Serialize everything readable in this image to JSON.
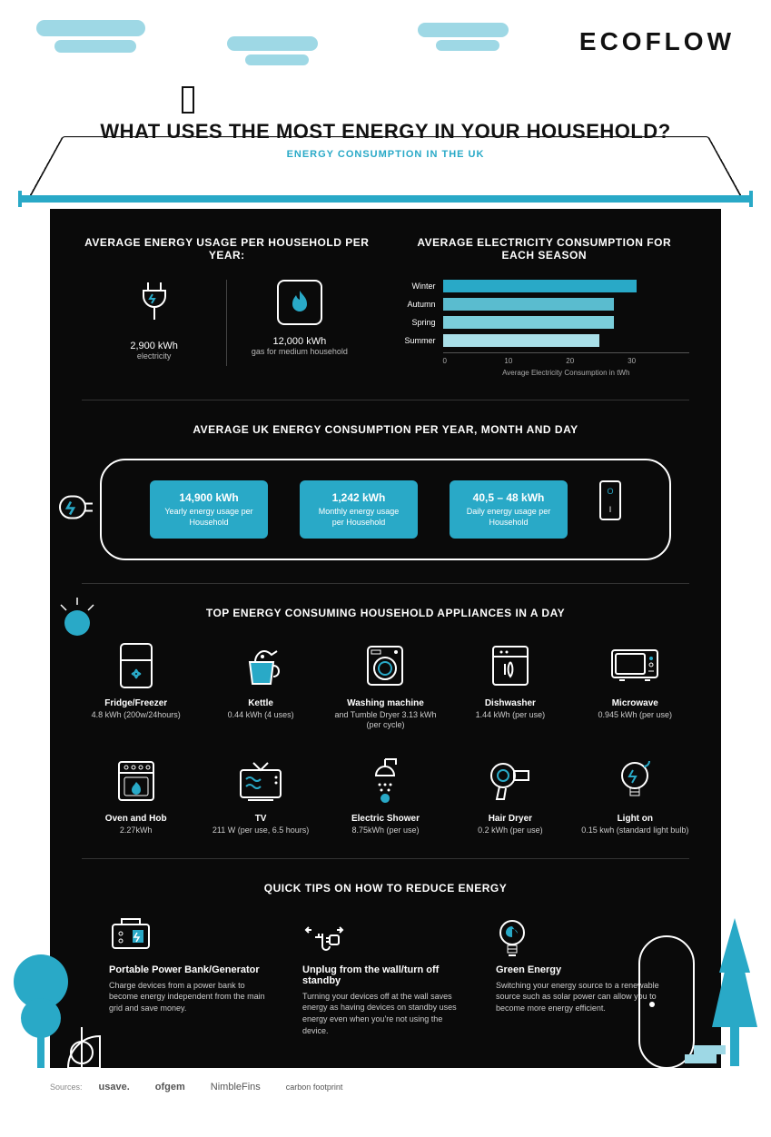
{
  "brand": "ECOFLOW",
  "title": "WHAT USES THE MOST ENERGY IN YOUR HOUSEHOLD?",
  "subtitle": "ENERGY CONSUMPTION IN THE UK",
  "colors": {
    "accent": "#29a9c7",
    "accent_light": "#9ed8e5",
    "dark_bg": "#0a0a0a",
    "divider": "#333333",
    "text_light": "#ffffff",
    "text_muted": "#cccccc"
  },
  "section1": {
    "left_title": "AVERAGE ENERGY USAGE PER HOUSEHOLD PER YEAR:",
    "stats": [
      {
        "value": "2,900 kWh",
        "label": "electricity",
        "icon": "plug"
      },
      {
        "value": "12,000 kWh",
        "label": "gas for medium household",
        "icon": "flame"
      }
    ],
    "right_title": "AVERAGE ELECTRICITY CONSUMPTION FOR EACH SEASON",
    "chart": {
      "type": "bar",
      "orientation": "horizontal",
      "x_axis_label": "Average Electricity Consumption in tWh",
      "xlim": [
        0,
        30
      ],
      "xticks": [
        0,
        10,
        20,
        30
      ],
      "bars": [
        {
          "label": "Winter",
          "value": 26,
          "color": "#29a9c7"
        },
        {
          "label": "Autumn",
          "value": 23,
          "color": "#5abccf"
        },
        {
          "label": "Spring",
          "value": 23,
          "color": "#7bcedb"
        },
        {
          "label": "Summer",
          "value": 21,
          "color": "#a9dfe8"
        }
      ]
    }
  },
  "section2": {
    "title": "AVERAGE UK ENERGY CONSUMPTION PER YEAR, MONTH AND DAY",
    "cards": [
      {
        "value": "14,900 kWh",
        "label": "Yearly energy usage per Household"
      },
      {
        "value": "1,242 kWh",
        "label": "Monthly energy usage per Household"
      },
      {
        "value": "40,5 – 48 kWh",
        "label": "Daily energy usage per Household"
      }
    ],
    "switch": {
      "top": "O",
      "bottom": "I"
    }
  },
  "section3": {
    "title": "TOP ENERGY CONSUMING HOUSEHOLD APPLIANCES IN A DAY",
    "items": [
      {
        "name": "Fridge/Freezer",
        "detail": "4.8 kWh (200w/24hours)",
        "icon": "fridge"
      },
      {
        "name": "Kettle",
        "detail": "0.44 kWh (4 uses)",
        "icon": "kettle"
      },
      {
        "name": "Washing machine",
        "detail": "and Tumble Dryer 3.13 kWh (per cycle)",
        "icon": "washer"
      },
      {
        "name": "Dishwasher",
        "detail": "1.44 kWh (per use)",
        "icon": "dishwasher"
      },
      {
        "name": "Microwave",
        "detail": "0.945 kWh (per use)",
        "icon": "microwave"
      },
      {
        "name": "Oven and Hob",
        "detail": "2.27kWh",
        "icon": "oven"
      },
      {
        "name": "TV",
        "detail": "211 W (per use, 6.5 hours)",
        "icon": "tv"
      },
      {
        "name": "Electric Shower",
        "detail": "8.75kWh (per use)",
        "icon": "shower"
      },
      {
        "name": "Hair Dryer",
        "detail": "0.2 kWh (per use)",
        "icon": "hairdryer"
      },
      {
        "name": "Light on",
        "detail": "0.15 kwh (standard light bulb)",
        "icon": "bulb"
      }
    ]
  },
  "section4": {
    "title": "QUICK TIPS ON HOW TO REDUCE ENERGY",
    "tips": [
      {
        "title": "Portable Power Bank/Generator",
        "body": "Charge devices from a power bank to become energy independent from the main grid and save money.",
        "icon": "generator"
      },
      {
        "title": "Unplug from the wall/turn off standby",
        "body": "Turning your devices off at the wall saves energy as having devices on standby uses energy even when you're not using the device.",
        "icon": "unplug"
      },
      {
        "title": "Green Energy",
        "body": "Switching your energy source to a renewable source such as solar power can allow you to become more energy efficient.",
        "icon": "greenbulb"
      }
    ]
  },
  "footer": {
    "label": "Sources:",
    "sources": [
      "usave.",
      "ofgem",
      "NimbleFins",
      "carbon footprint"
    ]
  }
}
